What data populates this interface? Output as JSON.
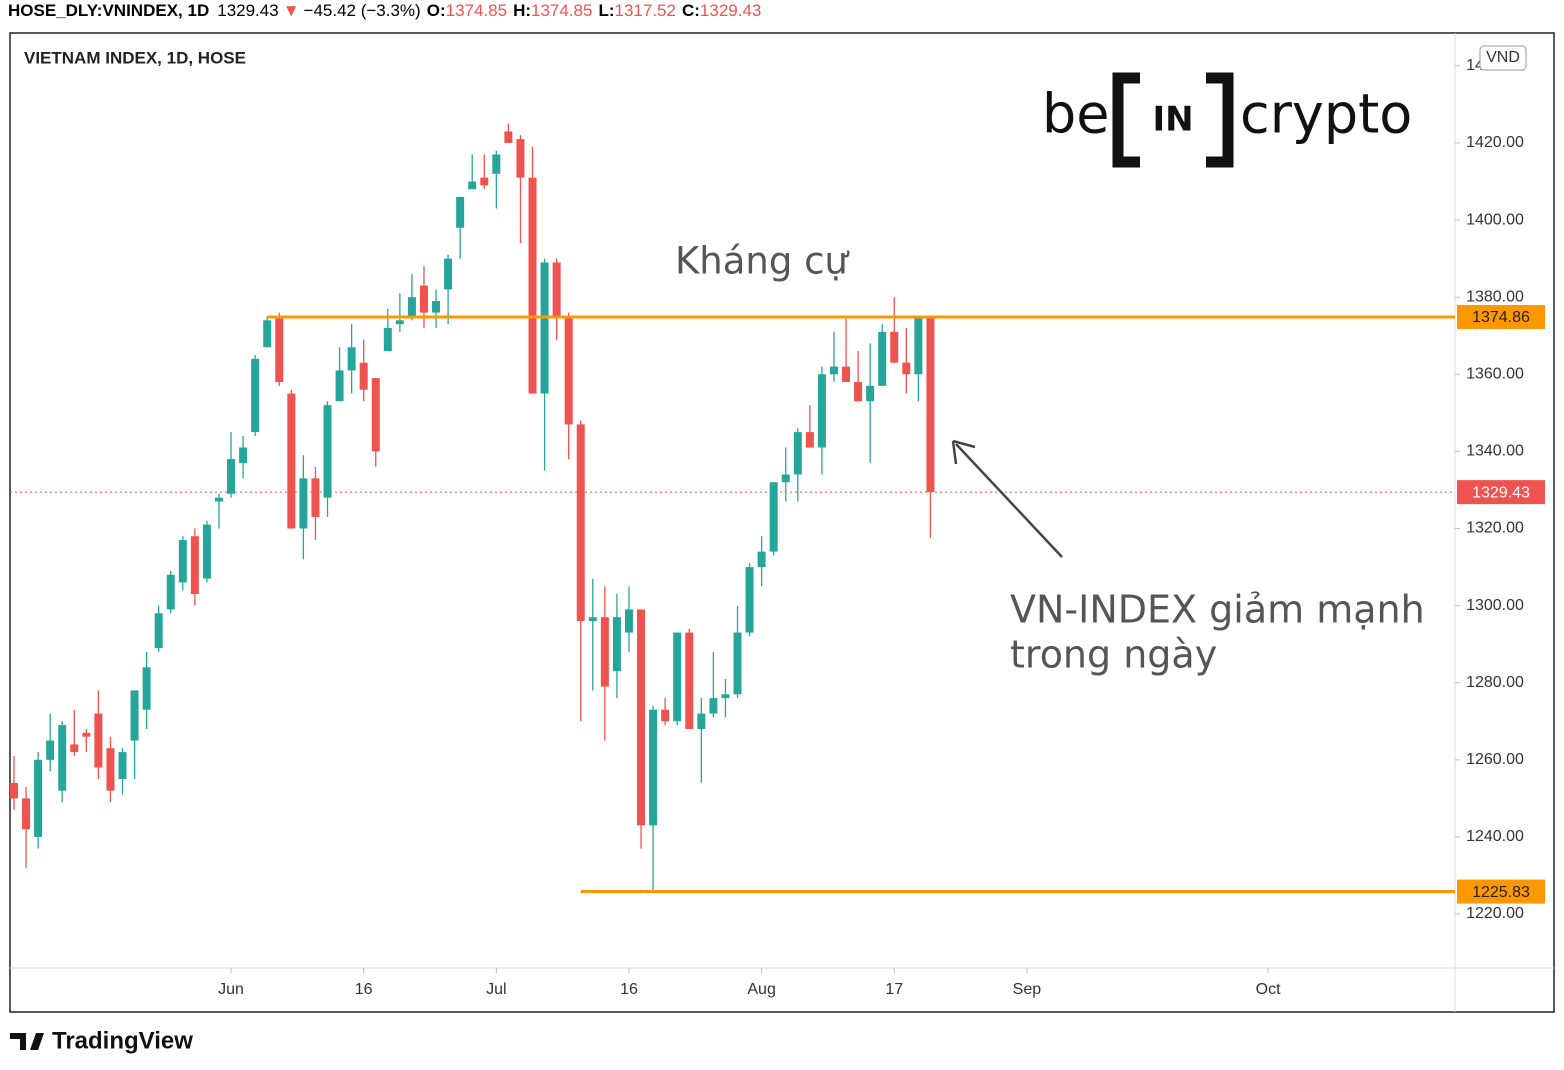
{
  "chart_data": {
    "type": "candlestick",
    "title": "VIETNAM INDEX, 1D, HOSE",
    "header": {
      "symbol": "HOSE_DLY:VNINDEX, 1D",
      "last": 1329.43,
      "change": "−45.42 (−3.3%)",
      "o_label": "O:",
      "open": 1374.85,
      "h_label": "H:",
      "high": 1374.85,
      "l_label": "L:",
      "low": 1317.52,
      "c_label": "C:",
      "close": 1329.43
    },
    "currency": "VND",
    "open": [
      1254,
      1250,
      1240,
      1260,
      1252,
      1264,
      1267,
      1272,
      1263,
      1255,
      1265,
      1273,
      1289,
      1299,
      1306,
      1318,
      1307,
      1327,
      1329,
      1337,
      1345,
      1367,
      1375,
      1355,
      1320,
      1333,
      1328,
      1353,
      1361,
      1363,
      1359,
      1366,
      1373,
      1375,
      1383,
      1376,
      1382,
      1398,
      1408,
      1411,
      1412,
      1423,
      1421,
      1411,
      1355,
      1389,
      1375,
      1347,
      1296,
      1297,
      1283,
      1293,
      1299,
      1243,
      1273,
      1270,
      1293,
      1268,
      1272,
      1276,
      1277,
      1293,
      1310,
      1314,
      1332,
      1334,
      1345,
      1341,
      1360,
      1362,
      1358,
      1353,
      1357,
      1371,
      1363,
      1360,
      1374.85
    ],
    "high": [
      1261,
      1253,
      1262,
      1272,
      1270,
      1273,
      1268,
      1278,
      1266,
      1263,
      1278,
      1288,
      1300,
      1309,
      1318,
      1320,
      1322,
      1329,
      1345,
      1344,
      1365,
      1375,
      1376,
      1356,
      1339,
      1336,
      1353,
      1367,
      1373,
      1369,
      1359,
      1377,
      1381,
      1386,
      1388,
      1382,
      1391,
      1406,
      1417,
      1417,
      1418,
      1425,
      1422,
      1419,
      1390,
      1390,
      1376,
      1348,
      1307,
      1305,
      1303,
      1305,
      1299,
      1274,
      1276,
      1293,
      1294,
      1276,
      1288,
      1281,
      1300,
      1311,
      1318,
      1332,
      1341,
      1346,
      1352,
      1362,
      1371,
      1375,
      1366,
      1368,
      1373,
      1380,
      1372,
      1375,
      1374.85
    ],
    "low": [
      1247,
      1232,
      1237,
      1257,
      1249,
      1261,
      1262,
      1255,
      1249,
      1251,
      1255,
      1268,
      1288,
      1298,
      1304,
      1300,
      1306,
      1320,
      1328,
      1333,
      1344,
      1367,
      1357,
      1320,
      1312,
      1317,
      1323,
      1353,
      1355,
      1353,
      1336,
      1366,
      1371,
      1374,
      1372,
      1372,
      1373,
      1390,
      1408,
      1408,
      1403,
      1420,
      1394,
      1355,
      1335,
      1369,
      1338,
      1270,
      1278,
      1265,
      1276,
      1288,
      1237,
      1226,
      1269,
      1269,
      1268,
      1254,
      1271,
      1271,
      1276,
      1292,
      1305,
      1313,
      1327,
      1327,
      1341,
      1334,
      1358,
      1358,
      1353,
      1337,
      1357,
      1363,
      1355,
      1353,
      1317.52
    ],
    "close": [
      1250,
      1242,
      1260,
      1265,
      1269,
      1262,
      1266,
      1258,
      1252,
      1262,
      1278,
      1284,
      1298,
      1308,
      1317,
      1303,
      1321,
      1328,
      1338,
      1341,
      1364,
      1374,
      1358,
      1320,
      1333,
      1323,
      1352,
      1361,
      1367,
      1356,
      1340,
      1372,
      1374,
      1380,
      1376,
      1379,
      1390,
      1406,
      1410,
      1409,
      1417,
      1420,
      1411,
      1355,
      1389,
      1375,
      1347,
      1296,
      1297,
      1279,
      1297,
      1299,
      1243,
      1273,
      1270,
      1293,
      1268,
      1272,
      1276,
      1277,
      1293,
      1310,
      1314,
      1332,
      1334,
      1345,
      1341,
      1360,
      1362,
      1358,
      1353,
      1357,
      1371,
      1363,
      1360,
      1375,
      1329.43
    ],
    "up_color": "#26a69a",
    "down_color": "#ef5350",
    "ylim": [
      1206,
      1448
    ],
    "yticks": [
      {
        "value": 1220,
        "label": "1220.00"
      },
      {
        "value": 1240,
        "label": "1240.00"
      },
      {
        "value": 1260,
        "label": "1260.00"
      },
      {
        "value": 1280,
        "label": "1280.00"
      },
      {
        "value": 1300,
        "label": "1300.00"
      },
      {
        "value": 1320,
        "label": "1320.00"
      },
      {
        "value": 1340,
        "label": "1340.00"
      },
      {
        "value": 1360,
        "label": "1360.00"
      },
      {
        "value": 1380,
        "label": "1380.00"
      },
      {
        "value": 1400,
        "label": "1400.00"
      },
      {
        "value": 1420,
        "label": "1420.00"
      },
      {
        "value": 1440,
        "label": "1440.00"
      }
    ],
    "xlim": [
      -0.33,
      119.5
    ],
    "xticks": [
      {
        "value": 18,
        "label": "Jun"
      },
      {
        "value": 29,
        "label": "16"
      },
      {
        "value": 40,
        "label": "Jul"
      },
      {
        "value": 51,
        "label": "16"
      },
      {
        "value": 62,
        "label": "Aug"
      },
      {
        "value": 73,
        "label": "17"
      },
      {
        "value": 84,
        "label": "Sep"
      },
      {
        "value": 104,
        "label": "Oct"
      }
    ],
    "grid": false,
    "levels": [
      {
        "value": 1374.86,
        "from": 21,
        "color": "#ff9800"
      },
      {
        "value": 1225.83,
        "from": 47,
        "color": "#ff9800"
      }
    ],
    "last_price": {
      "value": 1329.43,
      "color": "#ef5350"
    },
    "annotations": {
      "resistance": "Kháng cự",
      "note": [
        "VN-INDEX giảm mạnh",
        "trong ngày"
      ]
    }
  },
  "logo": {
    "left": "be",
    "middle": "IN",
    "right": "crypto"
  },
  "footer": {
    "brand": "TradingView"
  }
}
